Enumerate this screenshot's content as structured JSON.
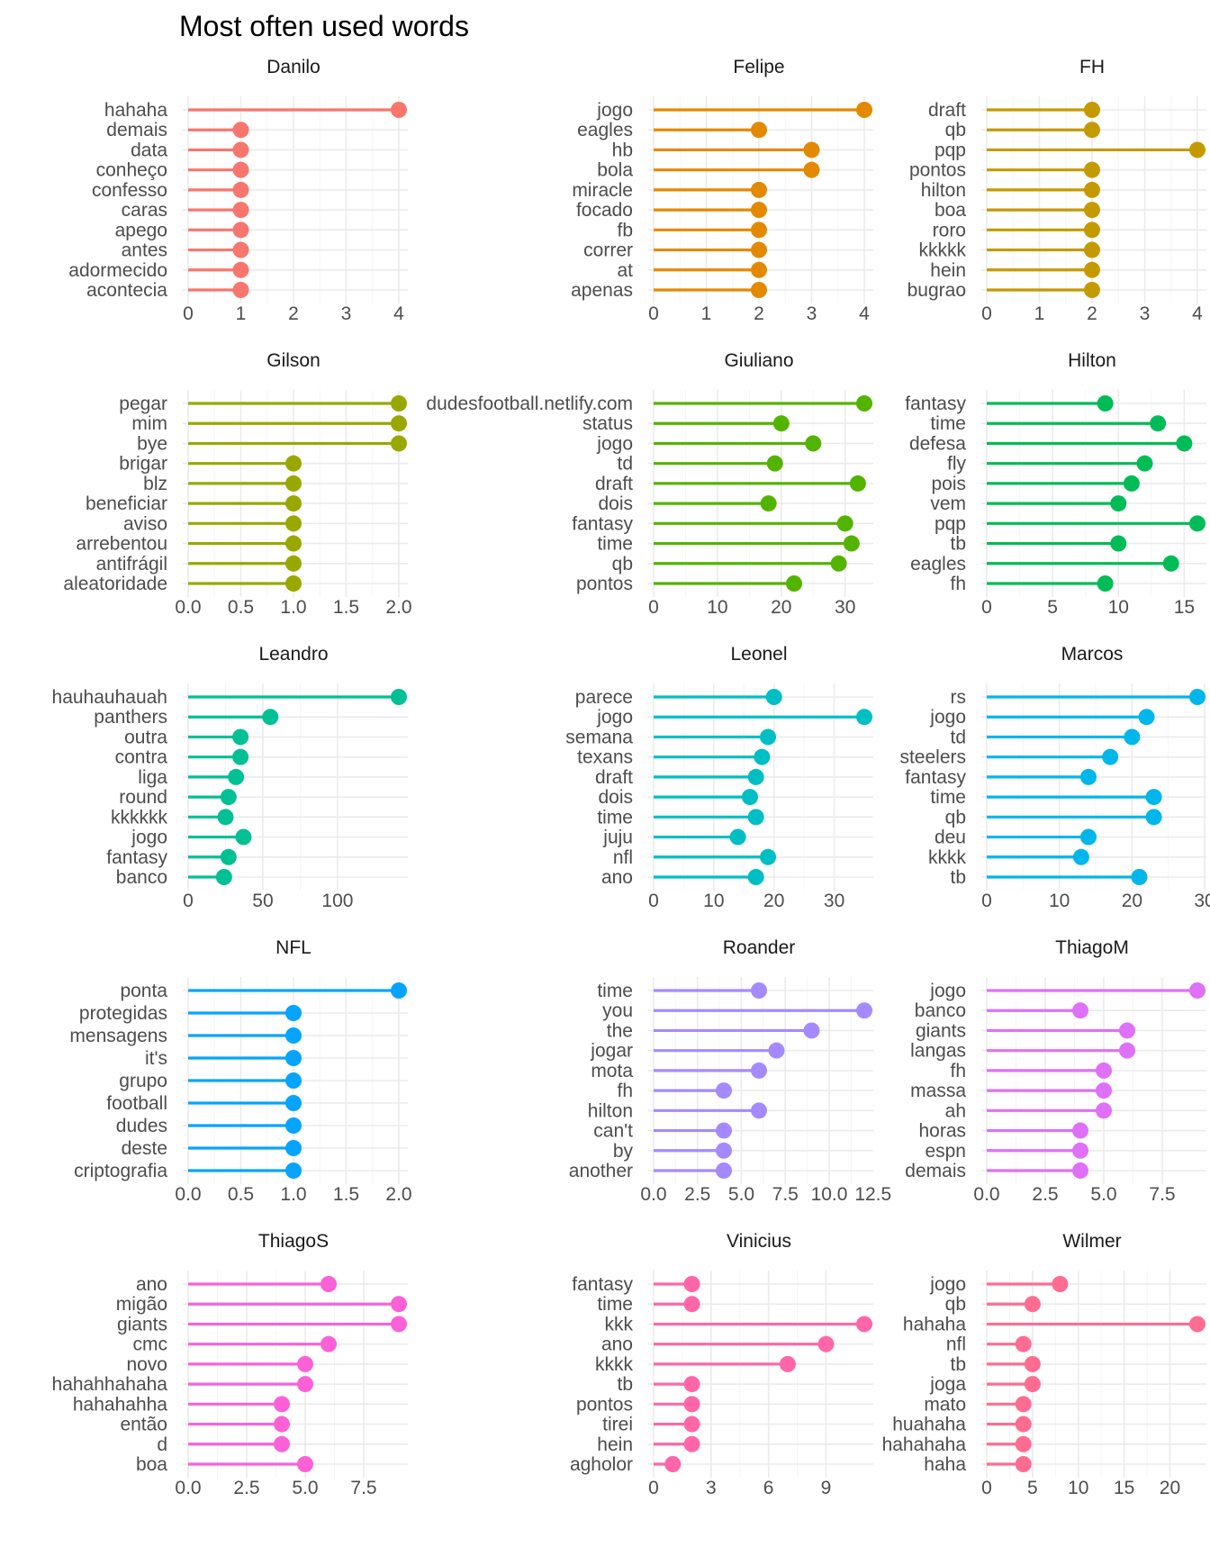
{
  "chart_data": {
    "type": "lollipop",
    "title": "Most often used words",
    "xlabel": "",
    "ylabel": "",
    "grid": true,
    "legend": "none",
    "facets": [
      {
        "name": "Danilo",
        "color": "#F8766D",
        "xlim": [
          0,
          4
        ],
        "ticks": [
          "0",
          "1",
          "2",
          "3",
          "4"
        ],
        "tick_values": [
          0,
          1,
          2,
          3,
          4
        ],
        "words": [
          "hahaha",
          "demais",
          "data",
          "conheço",
          "confesso",
          "caras",
          "apego",
          "antes",
          "adormecido",
          "acontecia"
        ],
        "values": [
          4,
          1,
          1,
          1,
          1,
          1,
          1,
          1,
          1,
          1
        ]
      },
      {
        "name": "Felipe",
        "color": "#E38900",
        "xlim": [
          0,
          4
        ],
        "ticks": [
          "0",
          "1",
          "2",
          "3",
          "4"
        ],
        "tick_values": [
          0,
          1,
          2,
          3,
          4
        ],
        "words": [
          "jogo",
          "eagles",
          "hb",
          "bola",
          "miracle",
          "focado",
          "fb",
          "correr",
          "at",
          "apenas"
        ],
        "values": [
          4,
          2,
          3,
          3,
          2,
          2,
          2,
          2,
          2,
          2
        ]
      },
      {
        "name": "FH",
        "color": "#C49A00",
        "xlim": [
          0,
          4
        ],
        "ticks": [
          "0",
          "1",
          "2",
          "3",
          "4"
        ],
        "tick_values": [
          0,
          1,
          2,
          3,
          4
        ],
        "words": [
          "draft",
          "qb",
          "pqp",
          "pontos",
          "hilton",
          "boa",
          "roro",
          "kkkkk",
          "hein",
          "bugrao"
        ],
        "values": [
          2,
          2,
          4,
          2,
          2,
          2,
          2,
          2,
          2,
          2
        ]
      },
      {
        "name": "Gilson",
        "color": "#99A800",
        "xlim": [
          0,
          2
        ],
        "ticks": [
          "0.0",
          "0.5",
          "1.0",
          "1.5",
          "2.0"
        ],
        "tick_values": [
          0,
          0.5,
          1,
          1.5,
          2
        ],
        "words": [
          "pegar",
          "mim",
          "bye",
          "brigar",
          "blz",
          "beneficiar",
          "aviso",
          "arrebentou",
          "antifrágil",
          "aleatoridade"
        ],
        "values": [
          2,
          2,
          2,
          1,
          1,
          1,
          1,
          1,
          1,
          1
        ]
      },
      {
        "name": "Giuliano",
        "color": "#53B400",
        "xlim": [
          0,
          33
        ],
        "ticks": [
          "0",
          "10",
          "20",
          "30"
        ],
        "tick_values": [
          0,
          10,
          20,
          30
        ],
        "words": [
          "dudesfootball.netlify.com",
          "status",
          "jogo",
          "td",
          "draft",
          "dois",
          "fantasy",
          "time",
          "qb",
          "pontos"
        ],
        "values": [
          33,
          20,
          25,
          19,
          32,
          18,
          30,
          31,
          29,
          22
        ]
      },
      {
        "name": "Hilton",
        "color": "#00BC56",
        "xlim": [
          0,
          16
        ],
        "ticks": [
          "0",
          "5",
          "10",
          "15"
        ],
        "tick_values": [
          0,
          5,
          10,
          15
        ],
        "words": [
          "fantasy",
          "time",
          "defesa",
          "fly",
          "pois",
          "vem",
          "pqp",
          "tb",
          "eagles",
          "fh"
        ],
        "values": [
          9,
          13,
          15,
          12,
          11,
          10,
          16,
          10,
          14,
          9
        ]
      },
      {
        "name": "Leandro",
        "color": "#00C094",
        "xlim": [
          0,
          141
        ],
        "ticks": [
          "0",
          "50",
          "100"
        ],
        "tick_values": [
          0,
          50,
          100
        ],
        "words": [
          "hauhauhauah",
          "panthers",
          "outra",
          "contra",
          "liga",
          "round",
          "kkkkkk",
          "jogo",
          "fantasy",
          "banco"
        ],
        "values": [
          141,
          55,
          35,
          35,
          32,
          27,
          25,
          37,
          27,
          24
        ]
      },
      {
        "name": "Leonel",
        "color": "#00BFC4",
        "xlim": [
          0,
          35
        ],
        "ticks": [
          "0",
          "10",
          "20",
          "30"
        ],
        "tick_values": [
          0,
          10,
          20,
          30
        ],
        "words": [
          "parece",
          "jogo",
          "semana",
          "texans",
          "draft",
          "dois",
          "time",
          "juju",
          "nfl",
          "ano"
        ],
        "values": [
          20,
          35,
          19,
          18,
          17,
          16,
          17,
          14,
          19,
          17
        ]
      },
      {
        "name": "Marcos",
        "color": "#00B6EB",
        "xlim": [
          0,
          29
        ],
        "ticks": [
          "0",
          "10",
          "20",
          "30"
        ],
        "tick_values": [
          0,
          10,
          20,
          30
        ],
        "words": [
          "rs",
          "jogo",
          "td",
          "steelers",
          "fantasy",
          "time",
          "qb",
          "deu",
          "kkkk",
          "tb"
        ],
        "values": [
          29,
          22,
          20,
          17,
          14,
          23,
          23,
          14,
          13,
          21
        ]
      },
      {
        "name": "NFL",
        "color": "#06A4FF",
        "xlim": [
          0,
          2
        ],
        "ticks": [
          "0.0",
          "0.5",
          "1.0",
          "1.5",
          "2.0"
        ],
        "tick_values": [
          0,
          0.5,
          1,
          1.5,
          2
        ],
        "words": [
          "ponta",
          "protegidas",
          "mensagens",
          "it's",
          "grupo",
          "football",
          "dudes",
          "deste",
          "criptografia"
        ],
        "values": [
          2,
          1,
          1,
          1,
          1,
          1,
          1,
          1,
          1
        ]
      },
      {
        "name": "Roander",
        "color": "#A58AFF",
        "xlim": [
          0,
          12
        ],
        "ticks": [
          "0.0",
          "2.5",
          "5.0",
          "7.5",
          "10.0",
          "12.5"
        ],
        "tick_values": [
          0,
          2.5,
          5,
          7.5,
          10,
          12.5
        ],
        "words": [
          "time",
          "you",
          "the",
          "jogar",
          "mota",
          "fh",
          "hilton",
          "can't",
          "by",
          "another"
        ],
        "values": [
          6,
          12,
          9,
          7,
          6,
          4,
          6,
          4,
          4,
          4
        ]
      },
      {
        "name": "ThiagoM",
        "color": "#DF70F8",
        "xlim": [
          0,
          9
        ],
        "ticks": [
          "0.0",
          "2.5",
          "5.0",
          "7.5"
        ],
        "tick_values": [
          0,
          2.5,
          5,
          7.5
        ],
        "words": [
          "jogo",
          "banco",
          "giants",
          "langas",
          "fh",
          "massa",
          "ah",
          "horas",
          "espn",
          "demais"
        ],
        "values": [
          9,
          4,
          6,
          6,
          5,
          5,
          5,
          4,
          4,
          4
        ]
      },
      {
        "name": "ThiagoS",
        "color": "#FB61D7",
        "xlim": [
          0,
          9
        ],
        "ticks": [
          "0.0",
          "2.5",
          "5.0",
          "7.5"
        ],
        "tick_values": [
          0,
          2.5,
          5,
          7.5
        ],
        "words": [
          "ano",
          "migão",
          "giants",
          "cmc",
          "novo",
          "hahahhahaha",
          "hahahahha",
          "então",
          "d",
          "boa"
        ],
        "values": [
          6,
          9,
          9,
          6,
          5,
          5,
          4,
          4,
          4,
          5
        ]
      },
      {
        "name": "Vinicius",
        "color": "#FF66A8",
        "xlim": [
          0,
          11
        ],
        "ticks": [
          "0",
          "3",
          "6",
          "9"
        ],
        "tick_values": [
          0,
          3,
          6,
          9
        ],
        "words": [
          "fantasy",
          "time",
          "kkk",
          "ano",
          "kkkk",
          "tb",
          "pontos",
          "tirei",
          "hein",
          "agholor"
        ],
        "values": [
          2,
          2,
          11,
          9,
          7,
          2,
          2,
          2,
          2,
          1
        ]
      },
      {
        "name": "Wilmer",
        "color": "#FF6C91",
        "xlim": [
          0,
          23
        ],
        "ticks": [
          "0",
          "5",
          "10",
          "15",
          "20"
        ],
        "tick_values": [
          0,
          5,
          10,
          15,
          20
        ],
        "words": [
          "jogo",
          "qb",
          "hahaha",
          "nfl",
          "tb",
          "joga",
          "mato",
          "huahaha",
          "hahahaha",
          "haha"
        ],
        "values": [
          8,
          5,
          23,
          4,
          5,
          5,
          4,
          4,
          4,
          4
        ]
      }
    ]
  }
}
